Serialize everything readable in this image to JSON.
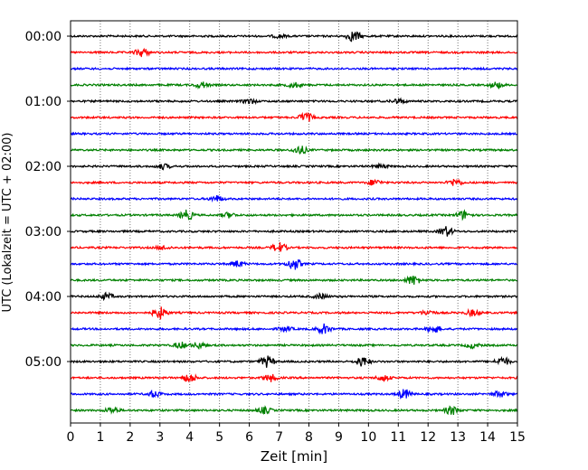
{
  "chart_data": {
    "type": "line",
    "title": "",
    "xlabel": "Zeit  [min]",
    "ylabel": "UTC (Lokalzeit = UTC + 02:00)",
    "xlim": [
      0,
      15
    ],
    "x_ticks": [
      "0",
      "1",
      "2",
      "3",
      "4",
      "5",
      "6",
      "7",
      "8",
      "9",
      "10",
      "11",
      "12",
      "13",
      "14",
      "15"
    ],
    "y_ticks": [
      "00:00",
      "01:00",
      "02:00",
      "03:00",
      "04:00",
      "05:00"
    ],
    "grid": "vertical dotted",
    "legend": "none",
    "series_colors": [
      "#000000",
      "#ff0000",
      "#0000ff",
      "#008000"
    ],
    "series": [
      {
        "time": "00:00",
        "events": [
          [
            7.0,
            0.25
          ],
          [
            9.5,
            0.9
          ]
        ]
      },
      {
        "time": "00:15",
        "events": [
          [
            2.4,
            0.7
          ]
        ]
      },
      {
        "time": "00:30",
        "events": []
      },
      {
        "time": "00:45",
        "events": [
          [
            4.4,
            0.5
          ],
          [
            7.5,
            0.4
          ],
          [
            14.3,
            0.5
          ]
        ]
      },
      {
        "time": "01:00",
        "events": [
          [
            6.0,
            0.4
          ],
          [
            11.0,
            0.4
          ]
        ]
      },
      {
        "time": "01:15",
        "events": [
          [
            7.9,
            0.8
          ]
        ]
      },
      {
        "time": "01:30",
        "events": []
      },
      {
        "time": "01:45",
        "events": [
          [
            7.7,
            0.7
          ]
        ]
      },
      {
        "time": "02:00",
        "events": [
          [
            3.1,
            0.4
          ],
          [
            10.4,
            0.3
          ]
        ]
      },
      {
        "time": "02:15",
        "events": [
          [
            10.2,
            0.5
          ],
          [
            12.9,
            0.6
          ]
        ]
      },
      {
        "time": "02:30",
        "events": [
          [
            4.9,
            0.5
          ]
        ]
      },
      {
        "time": "02:45",
        "events": [
          [
            3.9,
            0.8
          ],
          [
            5.3,
            0.4
          ],
          [
            13.2,
            0.7
          ]
        ]
      },
      {
        "time": "03:00",
        "events": [
          [
            12.6,
            0.8
          ]
        ]
      },
      {
        "time": "03:15",
        "events": [
          [
            7.0,
            0.8
          ],
          [
            3.1,
            0.3
          ]
        ]
      },
      {
        "time": "03:30",
        "events": [
          [
            5.6,
            0.5
          ],
          [
            7.5,
            1.0
          ]
        ]
      },
      {
        "time": "03:45",
        "events": [
          [
            11.5,
            0.8
          ]
        ]
      },
      {
        "time": "04:00",
        "events": [
          [
            1.2,
            0.5
          ],
          [
            8.4,
            0.4
          ]
        ]
      },
      {
        "time": "04:15",
        "events": [
          [
            3.0,
            1.0
          ],
          [
            12.0,
            0.4
          ],
          [
            13.5,
            0.5
          ]
        ]
      },
      {
        "time": "04:30",
        "events": [
          [
            7.2,
            0.4
          ],
          [
            8.5,
            0.8
          ],
          [
            12.2,
            0.6
          ]
        ]
      },
      {
        "time": "04:45",
        "events": [
          [
            3.7,
            0.5
          ],
          [
            4.3,
            0.5
          ],
          [
            13.5,
            0.4
          ]
        ]
      },
      {
        "time": "05:00",
        "events": [
          [
            6.6,
            0.9
          ],
          [
            9.8,
            0.8
          ],
          [
            14.5,
            0.7
          ]
        ]
      },
      {
        "time": "05:15",
        "events": [
          [
            4.0,
            0.7
          ],
          [
            6.7,
            0.6
          ],
          [
            10.5,
            0.5
          ]
        ]
      },
      {
        "time": "05:30",
        "events": [
          [
            2.8,
            0.5
          ],
          [
            11.2,
            0.8
          ],
          [
            14.4,
            0.5
          ]
        ]
      },
      {
        "time": "05:45",
        "events": [
          [
            1.4,
            0.5
          ],
          [
            6.5,
            0.5
          ],
          [
            12.8,
            0.7
          ]
        ]
      }
    ]
  }
}
